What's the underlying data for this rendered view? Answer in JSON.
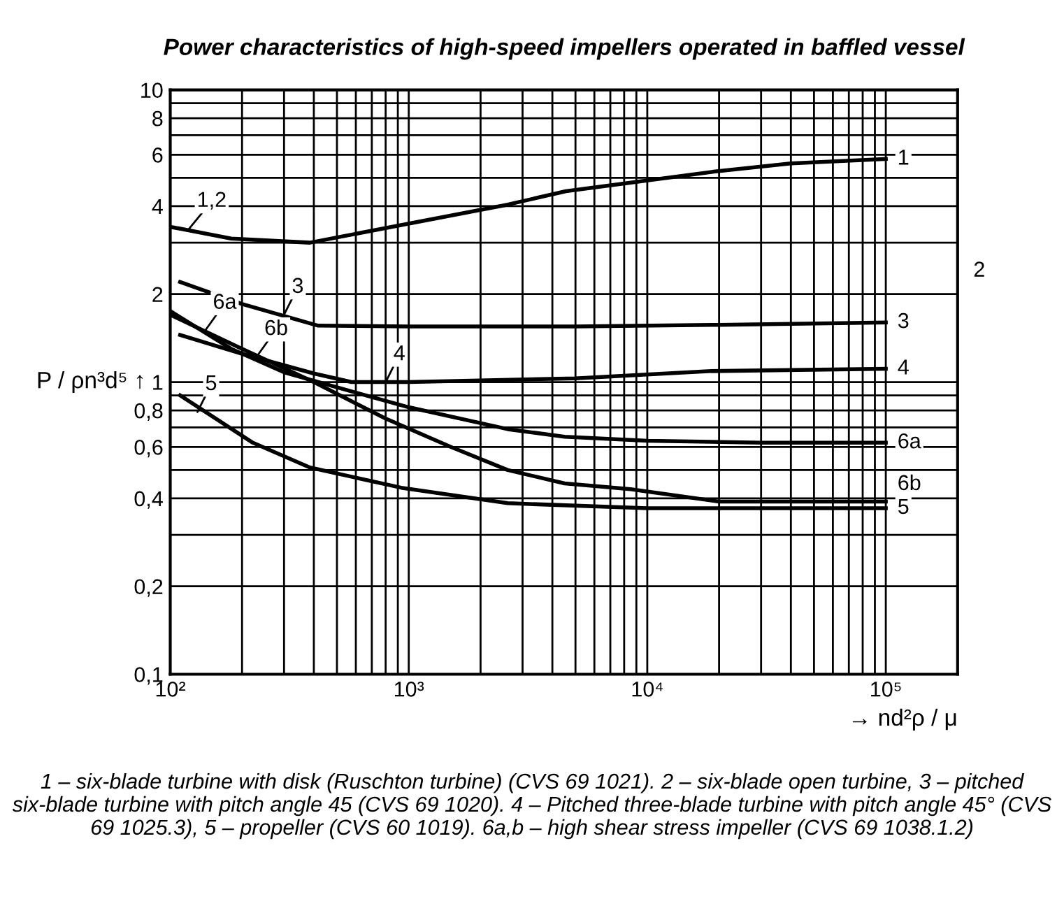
{
  "chart_data": {
    "type": "line",
    "title": "Power characteristics of high-speed impellers operated in baffled vessel",
    "xlabel": "→ nd²ρ / μ",
    "ylabel": "P / ρn³d⁵ ↑",
    "log": "xy",
    "grid": true,
    "marker": "none",
    "line_style": "solid",
    "xlim": [
      100,
      200000
    ],
    "ylim": [
      0.1,
      10
    ],
    "xticks": [
      {
        "value": 100,
        "label": "10²"
      },
      {
        "value": 200,
        "label": null
      },
      {
        "value": 300,
        "label": null
      },
      {
        "value": 400,
        "label": null
      },
      {
        "value": 500,
        "label": null
      },
      {
        "value": 600,
        "label": null
      },
      {
        "value": 700,
        "label": null
      },
      {
        "value": 800,
        "label": null
      },
      {
        "value": 900,
        "label": null
      },
      {
        "value": 1000,
        "label": "10³"
      },
      {
        "value": 2000,
        "label": null
      },
      {
        "value": 3000,
        "label": null
      },
      {
        "value": 4000,
        "label": null
      },
      {
        "value": 5000,
        "label": null
      },
      {
        "value": 6000,
        "label": null
      },
      {
        "value": 7000,
        "label": null
      },
      {
        "value": 8000,
        "label": null
      },
      {
        "value": 9000,
        "label": null
      },
      {
        "value": 10000,
        "label": "10⁴"
      },
      {
        "value": 20000,
        "label": null
      },
      {
        "value": 30000,
        "label": null
      },
      {
        "value": 40000,
        "label": null
      },
      {
        "value": 50000,
        "label": null
      },
      {
        "value": 60000,
        "label": null
      },
      {
        "value": 70000,
        "label": null
      },
      {
        "value": 80000,
        "label": null
      },
      {
        "value": 90000,
        "label": null
      },
      {
        "value": 100000,
        "label": "10⁵"
      }
    ],
    "yticks": [
      {
        "value": 0.1,
        "label": "0,1"
      },
      {
        "value": 0.2,
        "label": "0,2"
      },
      {
        "value": 0.3,
        "label": null
      },
      {
        "value": 0.4,
        "label": "0,4"
      },
      {
        "value": 0.5,
        "label": null
      },
      {
        "value": 0.6,
        "label": "0,6"
      },
      {
        "value": 0.7,
        "label": null
      },
      {
        "value": 0.8,
        "label": "0,8"
      },
      {
        "value": 0.9,
        "label": null
      },
      1,
      2,
      {
        "value": 3,
        "label": null
      },
      4,
      {
        "value": 5,
        "label": null
      },
      6,
      {
        "value": 7,
        "label": null
      },
      8,
      {
        "value": 9,
        "label": null
      },
      10
    ],
    "series": [
      {
        "name": "1",
        "color": "#000000",
        "x": [
          100,
          180,
          385,
          850,
          2600,
          4560,
          19000,
          40000,
          100000
        ],
        "values": [
          3.4,
          3.1,
          3.0,
          3.4,
          4.05,
          4.5,
          5.25,
          5.6,
          5.8
        ]
      },
      {
        "name": "3",
        "color": "#000000",
        "x": [
          110,
          200,
          417,
          1000,
          5000,
          20000,
          100000
        ],
        "values": [
          2.2,
          1.85,
          1.56,
          1.55,
          1.55,
          1.57,
          1.6
        ]
      },
      {
        "name": "6a",
        "color": "#000000",
        "x": [
          100,
          180,
          300,
          600,
          1000,
          2600,
          4500,
          10000,
          30000,
          100000
        ],
        "values": [
          1.75,
          1.3,
          1.08,
          0.92,
          0.82,
          0.69,
          0.65,
          0.63,
          0.62,
          0.62
        ]
      },
      {
        "name": "6b",
        "color": "#000000",
        "x": [
          100,
          200,
          400,
          800,
          1500,
          2600,
          4500,
          8500,
          20000,
          100000
        ],
        "values": [
          1.7,
          1.3,
          1.0,
          0.75,
          0.6,
          0.5,
          0.45,
          0.43,
          0.39,
          0.39
        ]
      },
      {
        "name": "4",
        "color": "#000000",
        "x": [
          110,
          200,
          400,
          575,
          1000,
          5000,
          18000,
          100000
        ],
        "values": [
          1.45,
          1.25,
          1.07,
          1.0,
          1.0,
          1.03,
          1.09,
          1.11
        ]
      },
      {
        "name": "5",
        "color": "#000000",
        "x": [
          110,
          222,
          385,
          930,
          2600,
          10000,
          100000
        ],
        "values": [
          0.9,
          0.62,
          0.51,
          0.435,
          0.385,
          0.37,
          0.37
        ]
      }
    ],
    "annotations": [
      {
        "text": "1,2",
        "x": 120,
        "y": 3.35
      },
      {
        "text": "3",
        "x": 300,
        "y": 1.7
      },
      {
        "text": "6a",
        "x": 140,
        "y": 1.5
      },
      {
        "text": "6b",
        "x": 230,
        "y": 1.22
      },
      {
        "text": "4",
        "x": 800,
        "y": 1.0
      },
      {
        "text": "5",
        "x": 130,
        "y": 0.79
      },
      "2",
      "1 – six-blade turbine with disk (Ruschton turbine) (CVS 69 1021). 2 – six-blade open turbine, 3 – pitched six-blade turbine with pitch angle 45 (CVS 69 1020). 4 – Pitched three-blade turbine with pitch angle 45° (CVS 69 1025.3), 5 – propeller (CVS 60 1019). 6a,b – high shear stress impeller (CVS 69 1038.1.2)"
    ]
  }
}
